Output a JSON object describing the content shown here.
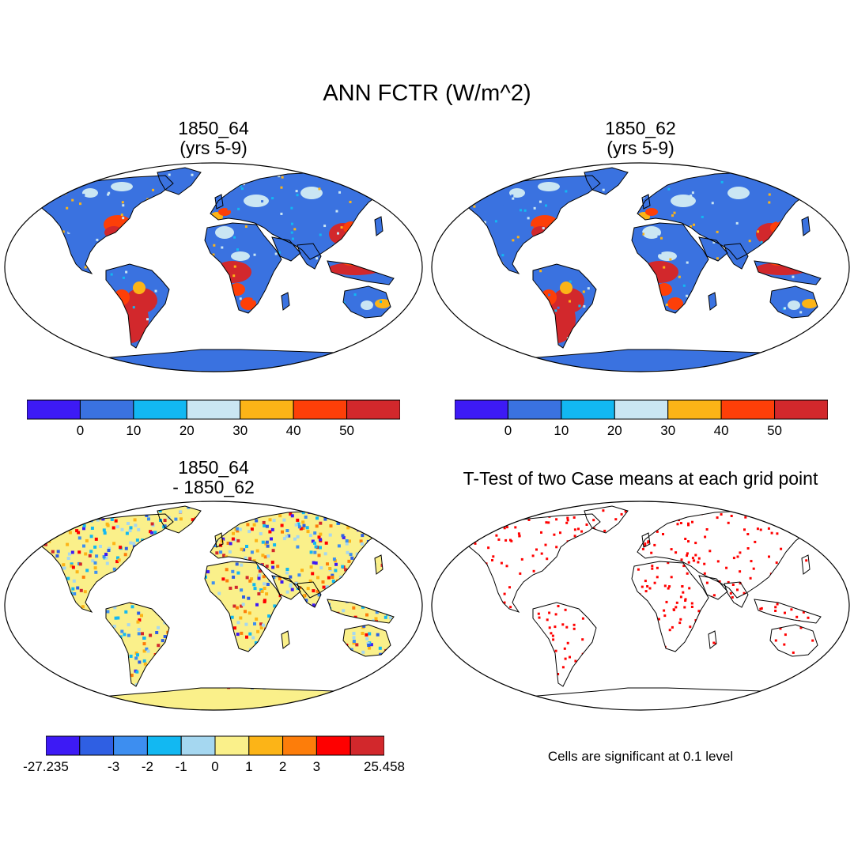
{
  "main_title": "ANN FCTR (W/m^2)",
  "panels": [
    {
      "title_line1": "1850_64",
      "title_line2": "(yrs 5-9)"
    },
    {
      "title_line1": "1850_62",
      "title_line2": "(yrs 5-9)"
    },
    {
      "title_line1": "1850_64",
      "title_line2": "- 1850_62"
    },
    {
      "title_line1": "T-Test of two Case means at each grid point",
      "title_line2": ""
    }
  ],
  "colorbar_top": {
    "colors": [
      "#3d1af5",
      "#3a72e0",
      "#12b8f2",
      "#cae6f3",
      "#fcb417",
      "#fd3f08",
      "#d2282c"
    ],
    "tick_labels": [
      "0",
      "10",
      "20",
      "30",
      "40",
      "50"
    ]
  },
  "colorbar_diff": {
    "colors": [
      "#3d1af5",
      "#2f5fe3",
      "#3d8ef0",
      "#12b8f2",
      "#a5d7f0",
      "#faf08a",
      "#fcb417",
      "#fd7d0a",
      "#fe0000",
      "#d2282c"
    ],
    "tick_labels": [
      "-27.235",
      "-3",
      "-2",
      "-1",
      "0",
      "1",
      "2",
      "3",
      "25.458"
    ]
  },
  "significance_note": "Cells are significant at 0.1 level",
  "map_colors": {
    "ocean": "#ffffff",
    "land_blue": "#3a72e0",
    "land_red": "#d2282c",
    "diff_land": "#faf08a",
    "sig_dot": "#ff0000"
  }
}
